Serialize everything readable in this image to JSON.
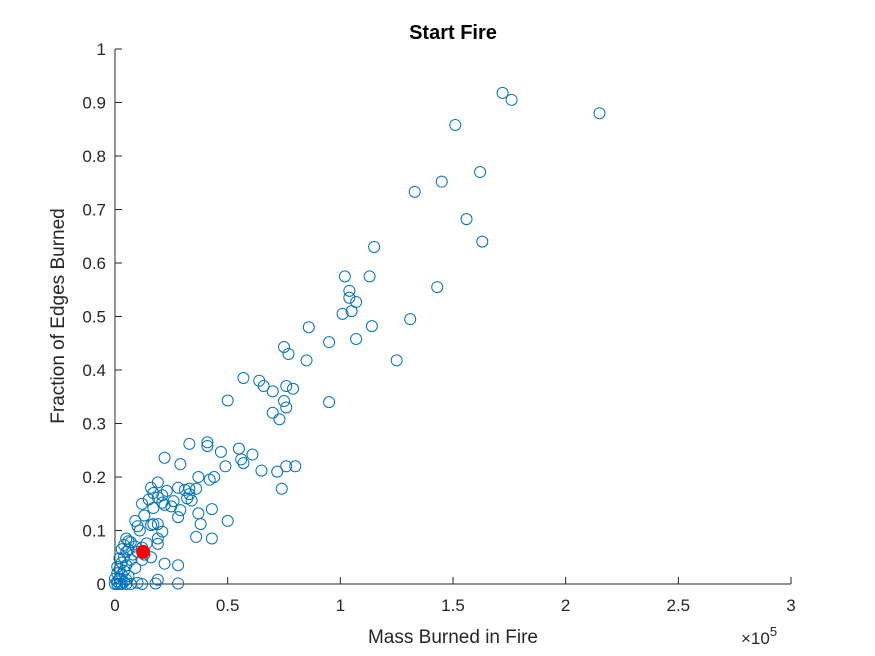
{
  "chart_data": {
    "type": "scatter",
    "title": "Start Fire",
    "xlabel": "Mass Burned in Fire",
    "ylabel": "Fraction of Edges Burned",
    "x_multiplier": "×10",
    "x_multiplier_exponent": "5",
    "xlim": [
      0,
      3
    ],
    "ylim": [
      0,
      1
    ],
    "x_ticks": [
      0,
      0.5,
      1,
      1.5,
      2,
      2.5,
      3
    ],
    "x_tick_labels": [
      "0",
      "0.5",
      "1",
      "1.5",
      "2",
      "2.5",
      "3"
    ],
    "y_ticks": [
      0,
      0.1,
      0.2,
      0.3,
      0.4,
      0.5,
      0.6,
      0.7,
      0.8,
      0.9,
      1
    ],
    "y_tick_labels": [
      "0",
      "0.1",
      "0.2",
      "0.3",
      "0.4",
      "0.5",
      "0.6",
      "0.7",
      "0.8",
      "0.9",
      "1"
    ],
    "grid": false,
    "series": [
      {
        "marker": "open-circle",
        "color": "#0072BD",
        "points": [
          [
            2.15,
            0.88
          ],
          [
            1.72,
            0.918
          ],
          [
            1.76,
            0.905
          ],
          [
            1.51,
            0.858
          ],
          [
            1.62,
            0.77
          ],
          [
            1.45,
            0.752
          ],
          [
            1.33,
            0.733
          ],
          [
            1.56,
            0.682
          ],
          [
            1.63,
            0.64
          ],
          [
            1.15,
            0.63
          ],
          [
            1.02,
            0.575
          ],
          [
            1.13,
            0.575
          ],
          [
            1.04,
            0.548
          ],
          [
            1.43,
            0.555
          ],
          [
            1.04,
            0.535
          ],
          [
            1.07,
            0.527
          ],
          [
            1.05,
            0.51
          ],
          [
            1.01,
            0.505
          ],
          [
            1.31,
            0.495
          ],
          [
            0.86,
            0.48
          ],
          [
            1.14,
            0.482
          ],
          [
            1.07,
            0.458
          ],
          [
            0.95,
            0.452
          ],
          [
            0.75,
            0.443
          ],
          [
            0.77,
            0.43
          ],
          [
            0.85,
            0.418
          ],
          [
            1.25,
            0.418
          ],
          [
            0.57,
            0.385
          ],
          [
            0.64,
            0.38
          ],
          [
            0.66,
            0.37
          ],
          [
            0.76,
            0.37
          ],
          [
            0.79,
            0.365
          ],
          [
            0.7,
            0.36
          ],
          [
            0.75,
            0.342
          ],
          [
            0.76,
            0.33
          ],
          [
            0.5,
            0.343
          ],
          [
            0.95,
            0.34
          ],
          [
            0.7,
            0.32
          ],
          [
            0.73,
            0.308
          ],
          [
            0.33,
            0.262
          ],
          [
            0.41,
            0.265
          ],
          [
            0.41,
            0.258
          ],
          [
            0.55,
            0.253
          ],
          [
            0.61,
            0.242
          ],
          [
            0.47,
            0.247
          ],
          [
            0.22,
            0.236
          ],
          [
            0.56,
            0.233
          ],
          [
            0.57,
            0.226
          ],
          [
            0.29,
            0.224
          ],
          [
            0.49,
            0.22
          ],
          [
            0.76,
            0.22
          ],
          [
            0.8,
            0.22
          ],
          [
            0.65,
            0.212
          ],
          [
            0.72,
            0.21
          ],
          [
            0.44,
            0.2
          ],
          [
            0.37,
            0.2
          ],
          [
            0.42,
            0.195
          ],
          [
            0.19,
            0.19
          ],
          [
            0.16,
            0.18
          ],
          [
            0.28,
            0.18
          ],
          [
            0.33,
            0.178
          ],
          [
            0.36,
            0.178
          ],
          [
            0.31,
            0.176
          ],
          [
            0.74,
            0.178
          ],
          [
            0.23,
            0.174
          ],
          [
            0.17,
            0.17
          ],
          [
            0.33,
            0.168
          ],
          [
            0.21,
            0.166
          ],
          [
            0.19,
            0.162
          ],
          [
            0.32,
            0.16
          ],
          [
            0.15,
            0.158
          ],
          [
            0.34,
            0.156
          ],
          [
            0.26,
            0.155
          ],
          [
            0.21,
            0.152
          ],
          [
            0.22,
            0.148
          ],
          [
            0.12,
            0.15
          ],
          [
            0.25,
            0.145
          ],
          [
            0.17,
            0.142
          ],
          [
            0.29,
            0.138
          ],
          [
            0.43,
            0.14
          ],
          [
            0.37,
            0.132
          ],
          [
            0.13,
            0.128
          ],
          [
            0.28,
            0.125
          ],
          [
            0.5,
            0.118
          ],
          [
            0.38,
            0.112
          ],
          [
            0.09,
            0.118
          ],
          [
            0.17,
            0.112
          ],
          [
            0.19,
            0.112
          ],
          [
            0.16,
            0.11
          ],
          [
            0.1,
            0.108
          ],
          [
            0.11,
            0.1
          ],
          [
            0.21,
            0.098
          ],
          [
            0.36,
            0.088
          ],
          [
            0.43,
            0.085
          ],
          [
            0.19,
            0.085
          ],
          [
            0.05,
            0.085
          ],
          [
            0.06,
            0.08
          ],
          [
            0.07,
            0.078
          ],
          [
            0.14,
            0.076
          ],
          [
            0.19,
            0.075
          ],
          [
            0.04,
            0.073
          ],
          [
            0.09,
            0.07
          ],
          [
            0.12,
            0.068
          ],
          [
            0.03,
            0.065
          ],
          [
            0.06,
            0.064
          ],
          [
            0.1,
            0.06
          ],
          [
            0.05,
            0.06
          ],
          [
            0.13,
            0.055
          ],
          [
            0.08,
            0.055
          ],
          [
            0.04,
            0.05
          ],
          [
            0.16,
            0.05
          ],
          [
            0.02,
            0.048
          ],
          [
            0.07,
            0.045
          ],
          [
            0.12,
            0.045
          ],
          [
            0.03,
            0.04
          ],
          [
            0.22,
            0.038
          ],
          [
            0.28,
            0.035
          ],
          [
            0.05,
            0.035
          ],
          [
            0.01,
            0.032
          ],
          [
            0.09,
            0.03
          ],
          [
            0.02,
            0.028
          ],
          [
            0.04,
            0.025
          ],
          [
            0.01,
            0.02
          ],
          [
            0.03,
            0.018
          ],
          [
            0.06,
            0.015
          ],
          [
            0.0,
            0.01
          ],
          [
            0.02,
            0.01
          ],
          [
            0.05,
            0.008
          ],
          [
            0.19,
            0.008
          ],
          [
            0.01,
            0.005
          ],
          [
            0.04,
            0.004
          ],
          [
            0.1,
            0.002
          ],
          [
            0.18,
            0.001
          ],
          [
            0.28,
            0.001
          ],
          [
            0.0,
            0.0
          ],
          [
            0.01,
            0.0
          ],
          [
            0.02,
            0.0
          ],
          [
            0.03,
            0.0
          ],
          [
            0.05,
            0.0
          ],
          [
            0.07,
            0.0
          ],
          [
            0.12,
            0.0
          ]
        ]
      },
      {
        "marker": "filled-circle",
        "color": "#FF0000",
        "points": [
          [
            0.125,
            0.06
          ]
        ]
      }
    ]
  }
}
